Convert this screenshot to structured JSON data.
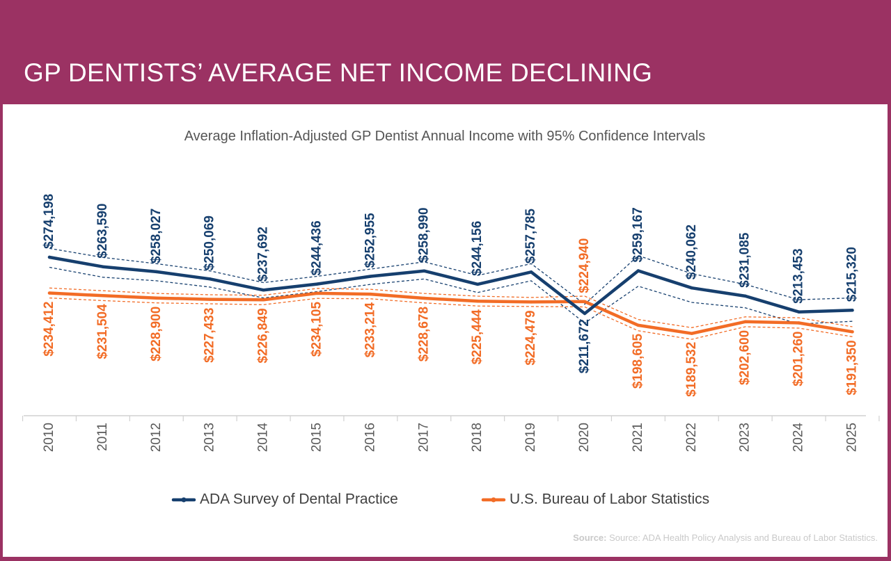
{
  "banner": {
    "title": "GP DENTISTS’ AVERAGE NET INCOME DECLINING"
  },
  "colors": {
    "banner": "#9b3263",
    "ada": "#163f6e",
    "bls": "#f26c26",
    "axis": "#d0d0d0"
  },
  "source": {
    "label": "Source:",
    "text": "Source: ADA Health Policy Analysis and Bureau of Labor Statistics."
  },
  "chart_data": {
    "type": "line",
    "title": "Average Inflation-Adjusted GP Dentist Annual Income with 95% Confidence Intervals",
    "categories": [
      "2010",
      "2011",
      "2012",
      "2013",
      "2014",
      "2015",
      "2016",
      "2017",
      "2018",
      "2019",
      "2020",
      "2021",
      "2022",
      "2023",
      "2024",
      "2025"
    ],
    "series": [
      {
        "name": "ADA Survey of Dental Practice",
        "color": "#163f6e",
        "values": [
          274198,
          263590,
          258027,
          250069,
          237692,
          244436,
          252955,
          258990,
          244156,
          257785,
          211672,
          259167,
          240062,
          231085,
          213453,
          215320
        ],
        "labels": [
          "$274,198",
          "$263,590",
          "$258,027",
          "$250,069",
          "$237,692",
          "$244,436",
          "$252,955",
          "$258,990",
          "$244,156",
          "$257,785",
          "$211,672",
          "$259,167",
          "$240,062",
          "$231,085",
          "$213,453",
          "$215,320"
        ],
        "ci_upper": [
          284000,
          274000,
          267000,
          259000,
          246000,
          253000,
          261000,
          269000,
          254000,
          267000,
          222000,
          276000,
          256000,
          244000,
          227000,
          229000
        ],
        "ci_lower": [
          263000,
          252000,
          248000,
          241000,
          229000,
          236000,
          244000,
          250000,
          235000,
          248000,
          201000,
          242000,
          224000,
          218000,
          200000,
          203000
        ]
      },
      {
        "name": "U.S. Bureau of Labor Statistics",
        "color": "#f26c26",
        "values": [
          234412,
          231504,
          228900,
          227433,
          226849,
          234105,
          233214,
          228678,
          225444,
          224479,
          224940,
          198605,
          189532,
          202600,
          201260,
          191350
        ],
        "labels": [
          "$234,412",
          "$231,504",
          "$228,900",
          "$227,433",
          "$226,849",
          "$234,105",
          "$233,214",
          "$228,678",
          "$225,444",
          "$224,479",
          "$224,940",
          "$198,605",
          "$189,532",
          "$202,600",
          "$201,260",
          "$191,350"
        ],
        "ci_upper": [
          240000,
          237000,
          234000,
          232500,
          232000,
          239500,
          238500,
          234000,
          231000,
          229500,
          231000,
          205000,
          196000,
          208000,
          207000,
          197000
        ],
        "ci_lower": [
          229000,
          226000,
          223500,
          222500,
          221500,
          228500,
          228000,
          223500,
          220000,
          219500,
          219000,
          192500,
          183000,
          197000,
          195500,
          186000
        ]
      }
    ],
    "legend": "bottom",
    "grid": false
  }
}
